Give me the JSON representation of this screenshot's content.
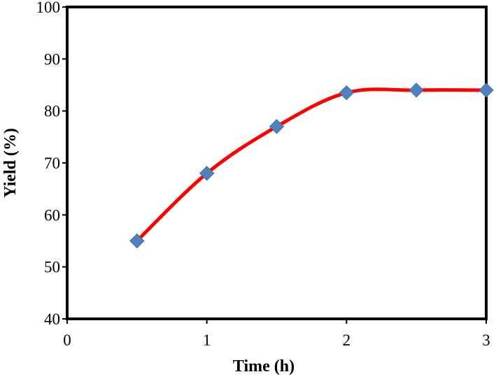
{
  "chart_data": {
    "type": "line",
    "title": "",
    "xlabel": "Time (h)",
    "ylabel": "Yield (%)",
    "xlim": [
      0,
      3
    ],
    "ylim": [
      40,
      100
    ],
    "xticks": [
      0,
      1,
      2,
      3
    ],
    "yticks": [
      40,
      50,
      60,
      70,
      80,
      90,
      100
    ],
    "grid": false,
    "legend": "none",
    "smooth": true,
    "series": [
      {
        "x": [
          0.5,
          1.0,
          1.5,
          2.0,
          2.5,
          3.0
        ],
        "y": [
          55,
          68,
          77,
          83.5,
          84,
          84
        ],
        "line_color": "#ff0000",
        "marker": "diamond",
        "marker_color": "#4f81bd"
      }
    ]
  }
}
